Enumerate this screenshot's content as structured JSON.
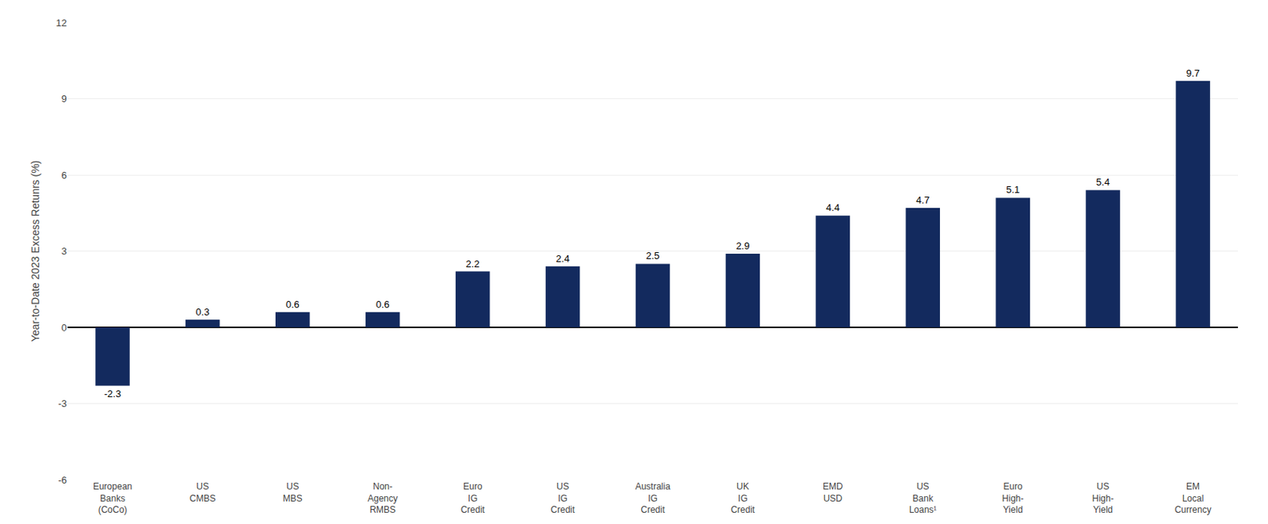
{
  "chart_data": {
    "type": "bar",
    "categories": [
      "European\nBanks\n(CoCo)",
      "US\nCMBS",
      "US\nMBS",
      "Non-\nAgency\nRMBS",
      "Euro\nIG\nCredit",
      "US\nIG\nCredit",
      "Australia\nIG\nCredit",
      "UK\nIG\nCredit",
      "EMD\nUSD",
      "US\nBank\nLoans¹",
      "Euro\nHigh-\nYield",
      "US\nHigh-\nYield",
      "EM\nLocal\nCurrency"
    ],
    "values": [
      -2.3,
      0.3,
      0.6,
      0.6,
      2.2,
      2.4,
      2.5,
      2.9,
      4.4,
      4.7,
      5.1,
      5.4,
      9.7
    ],
    "color": "#132A5E",
    "ylabel": "Year-to-Date 2023 Excess Retunrs (%)",
    "ylim": [
      -6,
      12
    ],
    "yticks": [
      -6,
      -3,
      0,
      3,
      6,
      9,
      12
    ],
    "grid": true,
    "data_labels": true
  }
}
